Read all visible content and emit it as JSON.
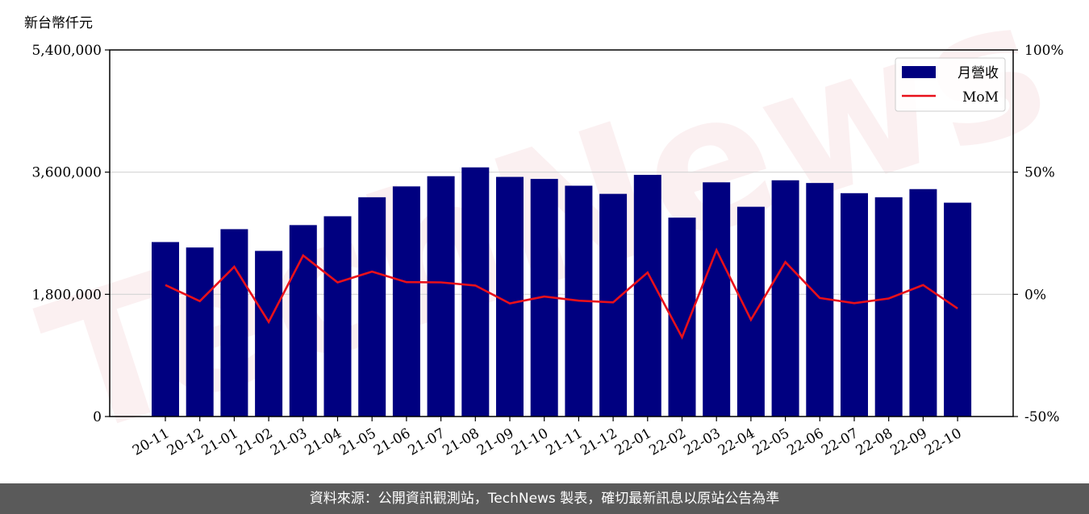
{
  "chart_data": {
    "type": "bar",
    "y_unit_label": "新台幣仟元",
    "categories": [
      "20-11",
      "20-12",
      "21-01",
      "21-02",
      "21-03",
      "21-04",
      "21-05",
      "21-06",
      "21-07",
      "21-08",
      "21-09",
      "21-10",
      "21-11",
      "21-12",
      "22-01",
      "22-02",
      "22-03",
      "22-04",
      "22-05",
      "22-06",
      "22-07",
      "22-08",
      "22-09",
      "22-10"
    ],
    "series": [
      {
        "name": "月營收",
        "kind": "bar",
        "axis": "left",
        "color": "#000080",
        "values": [
          2570000,
          2490000,
          2760000,
          2440000,
          2820000,
          2950000,
          3230000,
          3390000,
          3540000,
          3670000,
          3530000,
          3500000,
          3400000,
          3280000,
          3560000,
          2930000,
          3450000,
          3090000,
          3480000,
          3440000,
          3290000,
          3230000,
          3350000,
          3150000
        ]
      },
      {
        "name": "MoM",
        "kind": "line",
        "axis": "right",
        "color": "#e8101a",
        "values": [
          3.8,
          -2.8,
          11.3,
          -11.3,
          15.9,
          4.9,
          9.3,
          5.0,
          4.9,
          3.6,
          -3.7,
          -0.9,
          -2.6,
          -3.3,
          8.9,
          -17.6,
          18.1,
          -10.4,
          13.2,
          -1.5,
          -3.6,
          -1.7,
          3.8,
          -5.8
        ]
      }
    ],
    "y_left": {
      "ticks": [
        "0",
        "1,800,000",
        "3,600,000",
        "5,400,000"
      ],
      "range": [
        0,
        5400000
      ]
    },
    "y_right": {
      "ticks": [
        "-50%",
        "0%",
        "50%",
        "100%"
      ],
      "range": [
        -50,
        100
      ]
    },
    "grid": "horizontal",
    "legend": "top-right",
    "watermark": "TechNews"
  },
  "footer": {
    "text": "資料來源：公開資訊觀測站，TechNews 製表，確切最新訊息以原站公告為準"
  }
}
